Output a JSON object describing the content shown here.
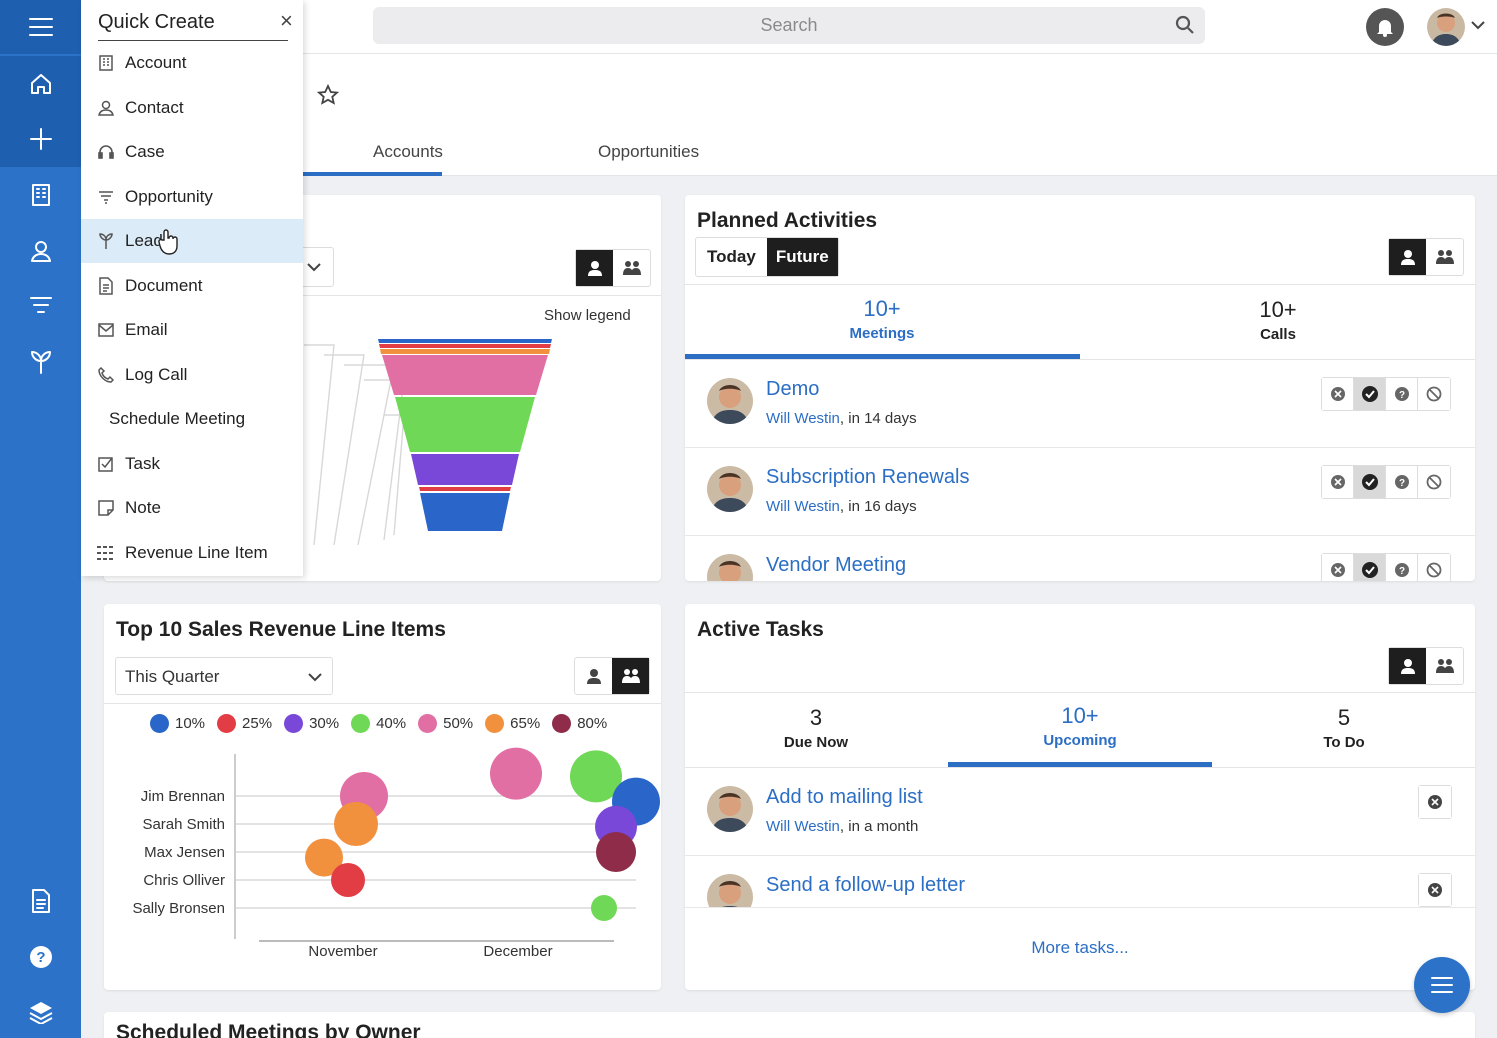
{
  "search": {
    "placeholder": "Search"
  },
  "tabs": [
    {
      "label": "Accounts"
    },
    {
      "label": "Opportunities"
    }
  ],
  "quick_create": {
    "title": "Quick Create",
    "close": "×",
    "items": [
      {
        "label": "Account",
        "icon": "building-icon"
      },
      {
        "label": "Contact",
        "icon": "person-icon"
      },
      {
        "label": "Case",
        "icon": "headset-icon"
      },
      {
        "label": "Opportunity",
        "icon": "filter-icon"
      },
      {
        "label": "Lead",
        "icon": "sprout-icon"
      },
      {
        "label": "Document",
        "icon": "document-icon"
      },
      {
        "label": "Email",
        "icon": "envelope-icon"
      },
      {
        "label": "Log Call",
        "icon": "phone-icon"
      },
      {
        "label": "Schedule Meeting",
        "icon": ""
      },
      {
        "label": "Task",
        "icon": "checkbox-icon"
      },
      {
        "label": "Note",
        "icon": "note-icon"
      },
      {
        "label": "Revenue Line Item",
        "icon": "grid-icon"
      }
    ]
  },
  "funnel_card": {
    "show_legend": "Show legend"
  },
  "planned_activities": {
    "title": "Planned Activities",
    "filters": [
      {
        "label": "Today",
        "active": false
      },
      {
        "label": "Future",
        "active": true
      }
    ],
    "stats": [
      {
        "count": "10+",
        "label": "Meetings",
        "active": true
      },
      {
        "count": "10+",
        "label": "Calls",
        "active": false
      }
    ],
    "items": [
      {
        "title": "Demo",
        "user": "Will Westin",
        "when": ", in 14 days"
      },
      {
        "title": "Subscription Renewals",
        "user": "Will Westin",
        "when": ", in 16 days"
      },
      {
        "title": "Vendor Meeting",
        "user": "Will Westin",
        "when": ""
      }
    ]
  },
  "top10": {
    "title": "Top 10 Sales Revenue Line Items",
    "filter": "This Quarter"
  },
  "active_tasks": {
    "title": "Active Tasks",
    "stats": [
      {
        "count": "3",
        "label": "Due Now",
        "active": false
      },
      {
        "count": "10+",
        "label": "Upcoming",
        "active": true
      },
      {
        "count": "5",
        "label": "To Do",
        "active": false
      }
    ],
    "items": [
      {
        "title": "Add to mailing list",
        "user": "Will Westin",
        "when": ", in a month"
      },
      {
        "title": "Send a follow-up letter",
        "user": "Will Westin",
        "when": ""
      }
    ],
    "more": "More tasks..."
  },
  "scheduled": {
    "title": "Scheduled Meetings by Owner"
  },
  "chart_data": {
    "type": "scatter",
    "legend_placement": "top",
    "legend": [
      {
        "label": "10%",
        "color": "#2a66c9"
      },
      {
        "label": "25%",
        "color": "#e23c45"
      },
      {
        "label": "30%",
        "color": "#7a48d8"
      },
      {
        "label": "40%",
        "color": "#6fd856"
      },
      {
        "label": "50%",
        "color": "#e26fa3"
      },
      {
        "label": "65%",
        "color": "#f2913d"
      },
      {
        "label": "80%",
        "color": "#8e2c4a"
      }
    ],
    "x_categories": [
      "November",
      "December"
    ],
    "y_categories": [
      "Jim Brennan",
      "Sarah Smith",
      "Max Jensen",
      "Chris Olliver",
      "Sally Bronsen"
    ],
    "points": [
      {
        "x": 0.3,
        "y": 0.0,
        "probability": "50%",
        "size": 24,
        "color": "#e26fa3"
      },
      {
        "x": 0.28,
        "y": 1.0,
        "probability": "65%",
        "size": 22,
        "color": "#f2913d"
      },
      {
        "x": 0.2,
        "y": 2.2,
        "probability": "65%",
        "size": 19,
        "color": "#f2913d"
      },
      {
        "x": 0.26,
        "y": 3.0,
        "probability": "25%",
        "size": 17,
        "color": "#e23c45"
      },
      {
        "x": 0.68,
        "y": -0.8,
        "probability": "50%",
        "size": 26,
        "color": "#e26fa3"
      },
      {
        "x": 0.88,
        "y": -0.7,
        "probability": "40%",
        "size": 26,
        "color": "#6fd856"
      },
      {
        "x": 0.98,
        "y": 0.2,
        "probability": "10%",
        "size": 24,
        "color": "#2a66c9"
      },
      {
        "x": 0.93,
        "y": 1.1,
        "probability": "30%",
        "size": 21,
        "color": "#7a48d8"
      },
      {
        "x": 0.93,
        "y": 2.0,
        "probability": "80%",
        "size": 20,
        "color": "#8e2c4a"
      },
      {
        "x": 0.9,
        "y": 4.0,
        "probability": "40%",
        "size": 13,
        "color": "#6fd856"
      }
    ]
  }
}
